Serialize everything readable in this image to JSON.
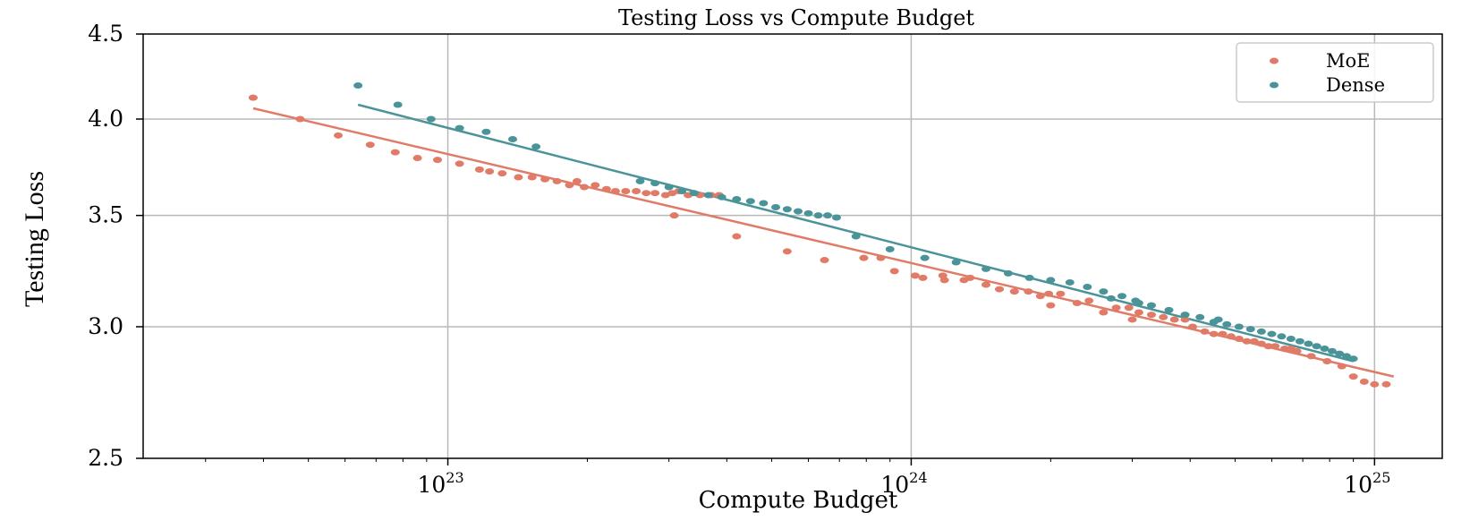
{
  "chart_data": {
    "type": "scatter",
    "title": "Testing Loss vs Compute Budget",
    "xlabel": "Compute Budget",
    "ylabel": "Testing Loss",
    "x_scale": "log",
    "y_scale": "log",
    "xlim": [
      2.2e+22,
      1.4e+25
    ],
    "ylim": [
      2.5,
      4.5
    ],
    "x_ticks": [
      {
        "value": 1e+23,
        "base": "10",
        "exp": "23"
      },
      {
        "value": 1e+24,
        "base": "10",
        "exp": "24"
      },
      {
        "value": 1e+25,
        "base": "10",
        "exp": "25"
      }
    ],
    "y_ticks": [
      {
        "value": 2.5,
        "label": "2.5"
      },
      {
        "value": 3.0,
        "label": "3.0"
      },
      {
        "value": 3.5,
        "label": "3.5"
      },
      {
        "value": 4.0,
        "label": "4.0"
      },
      {
        "value": 4.5,
        "label": "4.5"
      }
    ],
    "grid": true,
    "legend": "top-right",
    "series": [
      {
        "name": "MoE",
        "color": "#e07b67",
        "points": [
          [
            3.8e+22,
            4.12
          ],
          [
            4.8e+22,
            4.0
          ],
          [
            5.8e+22,
            3.91
          ],
          [
            6.8e+22,
            3.86
          ],
          [
            7.7e+22,
            3.82
          ],
          [
            8.6e+22,
            3.79
          ],
          [
            9.5e+22,
            3.78
          ],
          [
            1.06e+23,
            3.76
          ],
          [
            1.17e+23,
            3.73
          ],
          [
            1.23e+23,
            3.72
          ],
          [
            1.31e+23,
            3.71
          ],
          [
            1.42e+23,
            3.69
          ],
          [
            1.52e+23,
            3.69
          ],
          [
            1.62e+23,
            3.68
          ],
          [
            1.72e+23,
            3.67
          ],
          [
            1.83e+23,
            3.65
          ],
          [
            1.9e+23,
            3.67
          ],
          [
            1.97e+23,
            3.64
          ],
          [
            2.08e+23,
            3.65
          ],
          [
            2.2e+23,
            3.63
          ],
          [
            2.3e+23,
            3.62
          ],
          [
            2.42e+23,
            3.62
          ],
          [
            2.55e+23,
            3.62
          ],
          [
            2.68e+23,
            3.61
          ],
          [
            2.8e+23,
            3.61
          ],
          [
            2.95e+23,
            3.6
          ],
          [
            3.05e+23,
            3.61
          ],
          [
            3.15e+23,
            3.62
          ],
          [
            3.3e+23,
            3.6
          ],
          [
            3.5e+23,
            3.6
          ],
          [
            3.7e+23,
            3.6
          ],
          [
            3.85e+23,
            3.6
          ],
          [
            3.08e+23,
            3.5
          ],
          [
            4.2e+23,
            3.4
          ],
          [
            5.4e+23,
            3.33
          ],
          [
            6.5e+23,
            3.29
          ],
          [
            7.9e+23,
            3.3
          ],
          [
            8.6e+23,
            3.3
          ],
          [
            9.2e+23,
            3.24
          ],
          [
            1.02e+24,
            3.22
          ],
          [
            1.06e+24,
            3.21
          ],
          [
            1.17e+24,
            3.22
          ],
          [
            1.18e+24,
            3.2
          ],
          [
            1.3e+24,
            3.2
          ],
          [
            1.34e+24,
            3.21
          ],
          [
            1.45e+24,
            3.18
          ],
          [
            1.55e+24,
            3.16
          ],
          [
            1.67e+24,
            3.15
          ],
          [
            1.79e+24,
            3.15
          ],
          [
            1.9e+24,
            3.13
          ],
          [
            1.98e+24,
            3.14
          ],
          [
            2.1e+24,
            3.14
          ],
          [
            2.28e+24,
            3.1
          ],
          [
            2.42e+24,
            3.11
          ],
          [
            2.6e+24,
            3.06
          ],
          [
            2.77e+24,
            3.08
          ],
          [
            2.95e+24,
            3.08
          ],
          [
            3.1e+24,
            3.06
          ],
          [
            3.3e+24,
            3.05
          ],
          [
            3.5e+24,
            3.04
          ],
          [
            3.7e+24,
            3.03
          ],
          [
            3.9e+24,
            3.03
          ],
          [
            4.05e+24,
            3.0
          ],
          [
            4.3e+24,
            2.98
          ],
          [
            4.5e+24,
            2.97
          ],
          [
            4.7e+24,
            2.97
          ],
          [
            4.9e+24,
            2.96
          ],
          [
            5.1e+24,
            2.95
          ],
          [
            5.3e+24,
            2.94
          ],
          [
            5.5e+24,
            2.94
          ],
          [
            5.7e+24,
            2.93
          ],
          [
            5.9e+24,
            2.92
          ],
          [
            6.1e+24,
            2.92
          ],
          [
            6.4e+24,
            2.91
          ],
          [
            6.6e+24,
            2.91
          ],
          [
            6.8e+24,
            2.9
          ],
          [
            7.3e+24,
            2.88
          ],
          [
            7.9e+24,
            2.86
          ],
          [
            8.5e+24,
            2.84
          ],
          [
            9e+24,
            2.8
          ],
          [
            9.5e+24,
            2.78
          ],
          [
            1e+25,
            2.77
          ],
          [
            1.06e+25,
            2.77
          ],
          [
            3e+24,
            3.03
          ],
          [
            2e+24,
            3.09
          ]
        ],
        "trend": [
          [
            3.8e+22,
            4.06
          ],
          [
            1.1e+25,
            2.8
          ]
        ]
      },
      {
        "name": "Dense",
        "color": "#4a9499",
        "points": [
          [
            6.4e+22,
            4.19
          ],
          [
            7.8e+22,
            4.08
          ],
          [
            9.2e+22,
            4.0
          ],
          [
            1.06e+23,
            3.95
          ],
          [
            1.21e+23,
            3.93
          ],
          [
            1.38e+23,
            3.89
          ],
          [
            1.55e+23,
            3.85
          ],
          [
            2.6e+23,
            3.67
          ],
          [
            2.8e+23,
            3.66
          ],
          [
            3e+23,
            3.64
          ],
          [
            3.2e+23,
            3.62
          ],
          [
            3.4e+23,
            3.61
          ],
          [
            3.65e+23,
            3.6
          ],
          [
            3.9e+23,
            3.59
          ],
          [
            4.2e+23,
            3.58
          ],
          [
            4.5e+23,
            3.57
          ],
          [
            4.8e+23,
            3.56
          ],
          [
            5.1e+23,
            3.54
          ],
          [
            5.4e+23,
            3.53
          ],
          [
            5.7e+23,
            3.52
          ],
          [
            6e+23,
            3.51
          ],
          [
            6.3e+23,
            3.5
          ],
          [
            6.6e+23,
            3.5
          ],
          [
            6.9e+23,
            3.49
          ],
          [
            7.6e+23,
            3.4
          ],
          [
            9e+23,
            3.34
          ],
          [
            1.07e+24,
            3.3
          ],
          [
            1.25e+24,
            3.28
          ],
          [
            1.45e+24,
            3.25
          ],
          [
            1.62e+24,
            3.23
          ],
          [
            1.8e+24,
            3.21
          ],
          [
            2e+24,
            3.2
          ],
          [
            2.2e+24,
            3.19
          ],
          [
            2.4e+24,
            3.17
          ],
          [
            2.6e+24,
            3.15
          ],
          [
            2.85e+24,
            3.13
          ],
          [
            3.05e+24,
            3.11
          ],
          [
            3.3e+24,
            3.09
          ],
          [
            3.6e+24,
            3.07
          ],
          [
            3.9e+24,
            3.05
          ],
          [
            4.2e+24,
            3.04
          ],
          [
            4.5e+24,
            3.02
          ],
          [
            4.8e+24,
            3.01
          ],
          [
            5.1e+24,
            3.0
          ],
          [
            5.4e+24,
            2.99
          ],
          [
            5.7e+24,
            2.98
          ],
          [
            6e+24,
            2.97
          ],
          [
            6.3e+24,
            2.96
          ],
          [
            6.6e+24,
            2.95
          ],
          [
            6.9e+24,
            2.94
          ],
          [
            7.2e+24,
            2.93
          ],
          [
            7.5e+24,
            2.92
          ],
          [
            7.8e+24,
            2.91
          ],
          [
            8.1e+24,
            2.9
          ],
          [
            8.4e+24,
            2.89
          ],
          [
            8.7e+24,
            2.88
          ],
          [
            9e+24,
            2.87
          ],
          [
            2.7e+24,
            3.12
          ],
          [
            3.1e+24,
            3.1
          ],
          [
            4.6e+24,
            3.03
          ]
        ],
        "trend": [
          [
            6.4e+22,
            4.08
          ],
          [
            9e+24,
            2.86
          ]
        ]
      }
    ]
  }
}
